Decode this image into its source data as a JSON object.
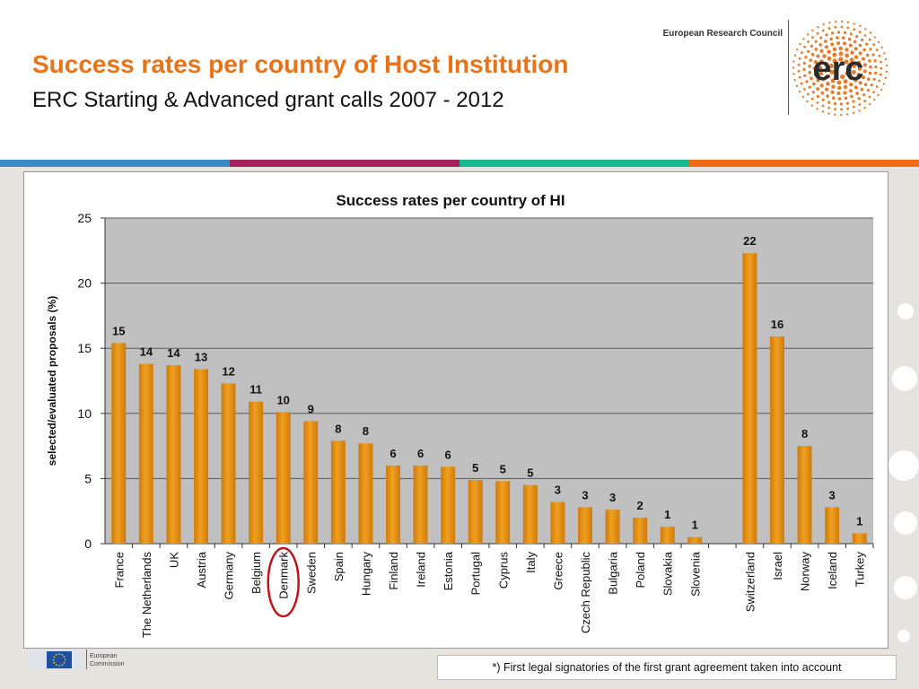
{
  "header": {
    "title": "Success rates per country of Host Institution",
    "subtitle": "ERC Starting & Advanced grant calls 2007 - 2012",
    "org_name": "European Research Council",
    "logo_text": "erc"
  },
  "colors": {
    "title": "#e8731b",
    "bar": "#f0a020",
    "bar_dark": "#d07a0a",
    "plot_bg": "#c0c0c0",
    "highlight_circle": "#c0141c",
    "stripes": [
      "#3a8ac6",
      "#a3215a",
      "#17b98f",
      "#ef6b16"
    ]
  },
  "chart_data": {
    "type": "bar",
    "title": "Success rates per country of HI",
    "ylabel": "selected/evaluated  proposals (%)",
    "xlabel": "",
    "ylim": [
      0,
      25
    ],
    "yticks": [
      0,
      5,
      10,
      15,
      20,
      25
    ],
    "grid": true,
    "legend": "none",
    "categories": [
      "France",
      "The Netherlands",
      "UK",
      "Austria",
      "Germany",
      "Belgium",
      "Denmark",
      "Sweden",
      "Spain",
      "Hungary",
      "Finland",
      "Ireland",
      "Estonia",
      "Portugal",
      "Cyprus",
      "Italy",
      "Greece",
      "Czech Republic",
      "Bulgaria",
      "Poland",
      "Slovakia",
      "Slovenia",
      "",
      "Switzerland",
      "Israel",
      "Norway",
      "Iceland",
      "Turkey"
    ],
    "values": [
      15.4,
      13.8,
      13.7,
      13.4,
      12.3,
      10.9,
      10.1,
      9.4,
      7.9,
      7.7,
      6.0,
      6.0,
      5.9,
      4.9,
      4.8,
      4.5,
      3.2,
      2.8,
      2.6,
      2.0,
      1.3,
      0.5,
      null,
      22.3,
      15.9,
      7.5,
      2.8,
      0.8
    ],
    "data_labels": [
      "15",
      "14",
      "14",
      "13",
      "12",
      "11",
      "10",
      "9",
      "8",
      "8",
      "6",
      "6",
      "6",
      "5",
      "5",
      "5",
      "3",
      "3",
      "3",
      "2",
      "1",
      "1",
      "",
      "22",
      "16",
      "8",
      "3",
      "1"
    ],
    "highlighted_category": "Denmark"
  },
  "footer": {
    "eu_label_line1": "European",
    "eu_label_line2": "Commission",
    "footnote": "*) First legal signatories of the first grant agreement taken into account"
  }
}
